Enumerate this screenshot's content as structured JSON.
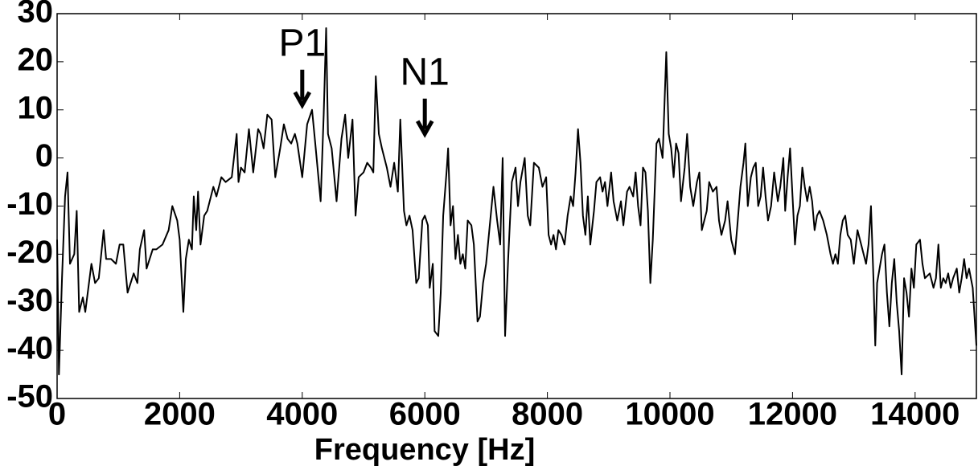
{
  "chart_data": {
    "type": "line",
    "xlabel": "Frequency [Hz]",
    "xlim": [
      0,
      15000
    ],
    "ylim": [
      -50,
      30
    ],
    "xticks": [
      0,
      2000,
      4000,
      6000,
      8000,
      10000,
      12000,
      14000
    ],
    "yticks": [
      30,
      20,
      10,
      0,
      -10,
      -20,
      -30,
      -40,
      -50
    ],
    "color": "#000000",
    "grid": false,
    "annotations": [
      {
        "text": "P1",
        "x": 4000,
        "y": 11
      },
      {
        "text": "N1",
        "x": 6000,
        "y": 5
      }
    ],
    "x": [
      0,
      30,
      80,
      130,
      170,
      210,
      280,
      320,
      360,
      420,
      460,
      560,
      620,
      680,
      760,
      800,
      880,
      960,
      1020,
      1080,
      1150,
      1250,
      1310,
      1350,
      1420,
      1460,
      1560,
      1620,
      1720,
      1820,
      1880,
      1960,
      2000,
      2060,
      2100,
      2150,
      2200,
      2230,
      2270,
      2300,
      2340,
      2400,
      2450,
      2550,
      2600,
      2680,
      2750,
      2850,
      2930,
      2960,
      3000,
      3060,
      3130,
      3200,
      3280,
      3320,
      3370,
      3430,
      3500,
      3560,
      3640,
      3700,
      3760,
      3820,
      3880,
      3920,
      4000,
      4080,
      4160,
      4220,
      4300,
      4350,
      4390,
      4420,
      4480,
      4560,
      4640,
      4700,
      4750,
      4820,
      4870,
      4920,
      5000,
      5060,
      5120,
      5160,
      5200,
      5250,
      5300,
      5380,
      5440,
      5500,
      5560,
      5600,
      5660,
      5700,
      5750,
      5800,
      5860,
      5900,
      5960,
      6000,
      6050,
      6080,
      6130,
      6160,
      6220,
      6260,
      6300,
      6360,
      6380,
      6420,
      6460,
      6500,
      6540,
      6580,
      6620,
      6660,
      6700,
      6760,
      6800,
      6860,
      6900,
      6950,
      7000,
      7060,
      7120,
      7180,
      7230,
      7270,
      7310,
      7360,
      7420,
      7480,
      7520,
      7560,
      7630,
      7680,
      7720,
      7780,
      7860,
      7920,
      7980,
      8020,
      8060,
      8100,
      8140,
      8180,
      8230,
      8280,
      8330,
      8380,
      8420,
      8460,
      8500,
      8540,
      8580,
      8620,
      8660,
      8700,
      8760,
      8800,
      8860,
      8900,
      8940,
      8980,
      9040,
      9080,
      9140,
      9200,
      9240,
      9300,
      9340,
      9400,
      9440,
      9480,
      9520,
      9560,
      9600,
      9640,
      9680,
      9720,
      9780,
      9820,
      9880,
      9940,
      9980,
      10020,
      10060,
      10100,
      10140,
      10180,
      10240,
      10280,
      10330,
      10380,
      10440,
      10480,
      10520,
      10560,
      10600,
      10640,
      10700,
      10760,
      10800,
      10840,
      10900,
      10940,
      11000,
      11060,
      11100,
      11150,
      11200,
      11230,
      11270,
      11320,
      11360,
      11400,
      11440,
      11480,
      11520,
      11560,
      11600,
      11650,
      11700,
      11760,
      11800,
      11850,
      11880,
      11920,
      11960,
      12000,
      12040,
      12080,
      12120,
      12160,
      12200,
      12240,
      12280,
      12320,
      12360,
      12400,
      12440,
      12500,
      12560,
      12620,
      12660,
      12700,
      12740,
      12780,
      12820,
      12860,
      12900,
      12950,
      13000,
      13060,
      13120,
      13160,
      13200,
      13240,
      13280,
      13320,
      13350,
      13380,
      13420,
      13460,
      13500,
      13540,
      13580,
      13620,
      13660,
      13700,
      13740,
      13780,
      13820,
      13860,
      13900,
      13940,
      13980,
      14020,
      14080,
      14120,
      14160,
      14240,
      14300,
      14340,
      14380,
      14420,
      14460,
      14500,
      14540,
      14580,
      14620,
      14680,
      14720,
      14760,
      14800,
      14840,
      14880,
      14940,
      15000
    ],
    "values": [
      -17,
      -45,
      -25,
      -8,
      -3,
      -22,
      -20,
      -11,
      -32,
      -29,
      -32,
      -22,
      -26,
      -25,
      -15,
      -21,
      -21,
      -22,
      -18,
      -18,
      -28,
      -24,
      -26,
      -19,
      -15,
      -23,
      -19,
      -19,
      -18,
      -15,
      -10,
      -13,
      -17,
      -32,
      -21,
      -17,
      -19,
      -8,
      -15,
      -7,
      -18,
      -12,
      -11,
      -6,
      -8,
      -4,
      -5,
      -4,
      5,
      -5,
      -2,
      -3,
      6,
      -3,
      6,
      5,
      2,
      9,
      8,
      -4,
      2,
      7,
      4,
      3,
      5,
      3,
      -4,
      7,
      10,
      2,
      -9,
      9,
      27,
      5,
      2,
      -9,
      4,
      9,
      0,
      8,
      -12,
      -4,
      -3,
      -1,
      -2,
      -3,
      17,
      5,
      2,
      -2,
      -6,
      -1,
      -7,
      8,
      -11,
      -14,
      -12,
      -15,
      -26,
      -25,
      -13,
      -12,
      -14,
      -27,
      -22,
      -36,
      -37,
      -28,
      -12,
      -2,
      2,
      -14,
      -10,
      -21,
      -16,
      -22,
      -20,
      -23,
      -13,
      -14,
      -18,
      -34,
      -33,
      -26,
      -22,
      -14,
      -6,
      -13,
      -18,
      0,
      -37,
      -21,
      -5,
      -2,
      -10,
      -5,
      0,
      -12,
      -14,
      -1,
      -2,
      -6,
      -4,
      -16,
      -18,
      -16,
      -19,
      -15,
      -16,
      -18,
      -12,
      -8,
      -10,
      -3,
      6,
      -1,
      -12,
      -16,
      -8,
      -18,
      -11,
      -5,
      -4,
      -7,
      -5,
      -10,
      -3,
      -9,
      -13,
      -9,
      -14,
      -7,
      -6,
      -8,
      -3,
      -10,
      -14,
      -2,
      -3,
      -11,
      -26,
      -17,
      3,
      4,
      0,
      22,
      5,
      2,
      -4,
      3,
      1,
      -9,
      -2,
      5,
      -6,
      -10,
      -5,
      -3,
      -15,
      -13,
      -11,
      -5,
      -7,
      -6,
      -13,
      -16,
      -13,
      -9,
      -17,
      -20,
      -14,
      -6,
      -1,
      3,
      -10,
      -4,
      -2,
      -1,
      -10,
      -8,
      -2,
      -8,
      -13,
      -10,
      -3,
      -9,
      -6,
      0,
      -11,
      -4,
      2,
      -8,
      -18,
      -12,
      -10,
      -2,
      -6,
      -9,
      -6,
      -9,
      -15,
      -12,
      -11,
      -13,
      -16,
      -20,
      -22,
      -20,
      -22,
      -16,
      -13,
      -12,
      -16,
      -17,
      -22,
      -15,
      -18,
      -20,
      -22,
      -18,
      -10,
      -25,
      -39,
      -26,
      -23,
      -20,
      -18,
      -28,
      -35,
      -26,
      -21,
      -30,
      -36,
      -45,
      -25,
      -28,
      -33,
      -23,
      -27,
      -18,
      -17,
      -22,
      -25,
      -24,
      -27,
      -25,
      -18,
      -27,
      -25,
      -26,
      -24,
      -27,
      -25,
      -23,
      -28,
      -25,
      -21,
      -25,
      -23,
      -27,
      -39
    ]
  }
}
